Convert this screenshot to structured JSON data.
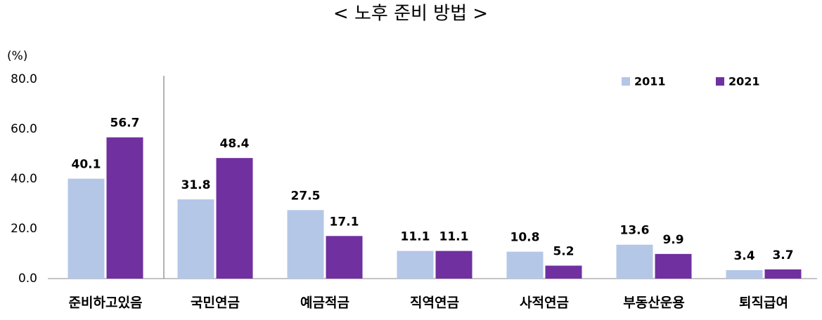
{
  "chart_data": {
    "type": "bar",
    "title": "< 노후 준비 방법 >",
    "y_label": "(%)",
    "categories": [
      "준비하고있음",
      "국민연금",
      "예금적금",
      "직역연금",
      "사적연금",
      "부동산운용",
      "퇴직급여"
    ],
    "series": [
      {
        "name": "2011",
        "color": "#b4c7e7",
        "values": [
          40.1,
          31.8,
          27.5,
          11.1,
          10.8,
          13.6,
          3.4
        ]
      },
      {
        "name": "2021",
        "color": "#7030a0",
        "values": [
          56.7,
          48.4,
          17.1,
          11.1,
          5.2,
          9.9,
          3.7
        ]
      }
    ],
    "ylim": [
      0,
      80
    ],
    "yticks": [
      {
        "value": 0,
        "label": "0.0"
      },
      {
        "value": 20,
        "label": "20.0"
      },
      {
        "value": 40,
        "label": "40.0"
      },
      {
        "value": 60,
        "label": "60.0"
      },
      {
        "value": 80,
        "label": "80.0"
      }
    ],
    "grid": false,
    "legend": "top-right"
  }
}
